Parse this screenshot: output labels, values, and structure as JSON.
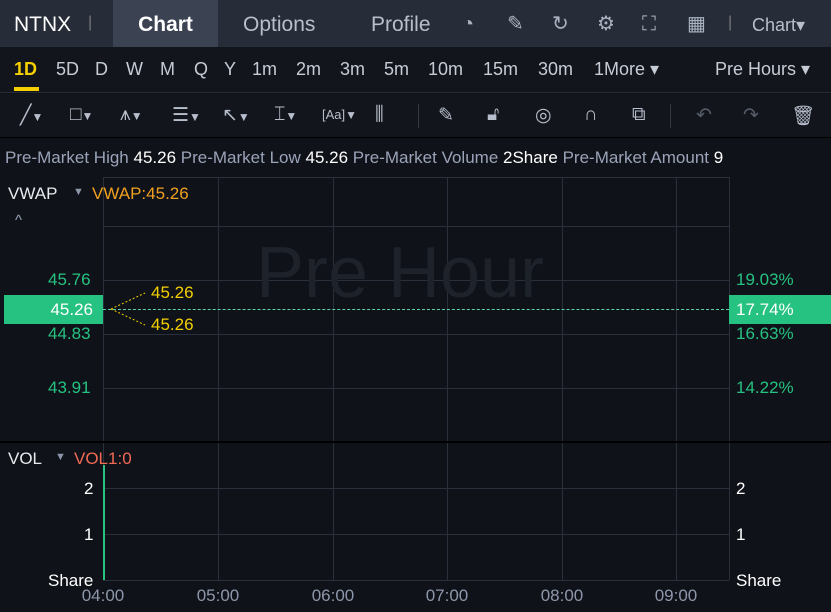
{
  "header": {
    "symbol": "NTNX",
    "tabs": [
      {
        "label": "Chart",
        "active": true
      },
      {
        "label": "Options"
      },
      {
        "label": "Profile"
      }
    ],
    "icons": [
      "gauge-icon",
      "edit-icon",
      "refresh-icon",
      "gear-icon",
      "fullscreen-icon",
      "grid-icon"
    ],
    "chart_menu": "Chart▾"
  },
  "periods": {
    "items": [
      "1D",
      "5D",
      "D",
      "W",
      "M",
      "Q",
      "Y",
      "1m",
      "2m",
      "3m",
      "5m",
      "10m",
      "15m",
      "30m",
      "1More ▾"
    ],
    "active": "1D",
    "session": "Pre Hours ▾"
  },
  "tools": [
    "line-tool",
    "rectangle-tool",
    "pattern-tool",
    "fibonacci-tool",
    "arrow-tool",
    "measure-tool",
    "text-tool",
    "indicator-tool",
    "pen-tool",
    "lock-tool",
    "visibility-tool",
    "magnet-tool",
    "layers-tool",
    "undo",
    "redo",
    "delete"
  ],
  "info": {
    "high_label": "Pre-Market High",
    "high": "45.26",
    "low_label": "Pre-Market Low",
    "low": "45.26",
    "vol_label": "Pre-Market Volume",
    "vol": "2Share",
    "amount_label": "Pre-Market Amount",
    "amount": "9"
  },
  "price_panel": {
    "indicator": "VWAP",
    "indicator_value": "VWAP:45.26",
    "watermark": "Pre Hour",
    "left_ticks": [
      "45.76",
      "44.83",
      "43.91"
    ],
    "right_ticks": [
      "19.03%",
      "16.63%",
      "14.22%"
    ],
    "current_price": "45.26",
    "current_pct": "17.74%",
    "high_marker": "45.26",
    "low_marker": "45.26",
    "colors": {
      "up": "#26c281",
      "vwap": "#f0a020",
      "marker": "#f5d000"
    }
  },
  "vol_panel": {
    "indicator": "VOL",
    "indicator_value": "VOL1:0",
    "ticks": [
      "2",
      "1"
    ],
    "unit": "Share"
  },
  "x_axis": [
    "04:00",
    "05:00",
    "06:00",
    "07:00",
    "08:00",
    "09:00"
  ]
}
